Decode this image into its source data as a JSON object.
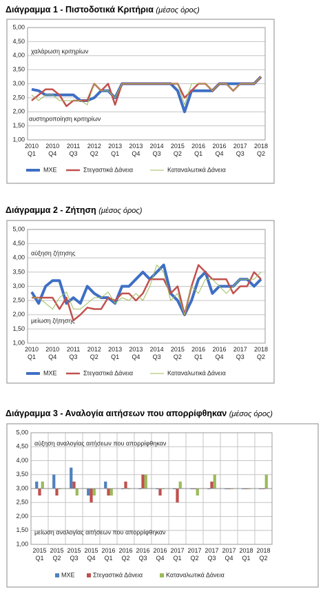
{
  "chart_data": [
    {
      "type": "line",
      "title": "Διάγραμμα 1 - Πιστοδοτικά Κριτήρια",
      "subtitle": "(μέσος όρος)",
      "annotations": [
        "χαλάρωση κριτηρίων",
        "αυστηροποίηση κριτηρίων"
      ],
      "categories": [
        [
          "2010",
          "Q1"
        ],
        null,
        null,
        [
          "2010",
          "Q4"
        ],
        null,
        null,
        [
          "2011",
          "Q3"
        ],
        null,
        null,
        [
          "2012",
          "Q2"
        ],
        null,
        null,
        [
          "2013",
          "Q1"
        ],
        null,
        null,
        [
          "2013",
          "Q4"
        ],
        null,
        null,
        [
          "2014",
          "Q3"
        ],
        null,
        null,
        [
          "2015",
          "Q2"
        ],
        null,
        null,
        [
          "2016",
          "Q1"
        ],
        null,
        null,
        [
          "2016",
          "Q4"
        ],
        null,
        null,
        [
          "2017",
          "Q3"
        ],
        null,
        null,
        [
          "2018",
          "Q2"
        ]
      ],
      "series": [
        {
          "name": "ΜΧΕ",
          "color": "#3e6fc4",
          "values": [
            2.8,
            2.75,
            2.6,
            2.6,
            2.6,
            2.6,
            2.6,
            2.4,
            2.4,
            2.5,
            2.75,
            2.75,
            2.5,
            3,
            3,
            3,
            3,
            3,
            3,
            3,
            3,
            2.75,
            2,
            2.75,
            2.75,
            2.75,
            2.75,
            3,
            3,
            3,
            3,
            3,
            3,
            3.25
          ]
        },
        {
          "name": "Στεγαστικά Δάνεια",
          "color": "#c0504d",
          "values": [
            2.4,
            2.6,
            2.8,
            2.8,
            2.6,
            2.2,
            2.4,
            2.4,
            2.4,
            3,
            2.75,
            3,
            2.25,
            3,
            3,
            3,
            3,
            3,
            3,
            3,
            3,
            3,
            2.5,
            2.75,
            3,
            3,
            2.75,
            3,
            3,
            2.75,
            3,
            3,
            3,
            3.25
          ]
        },
        {
          "name": "Καταναλωτικά Δάνεια",
          "color": "#9bbb59",
          "values": [
            2.6,
            2.4,
            2.6,
            2.6,
            2.4,
            2.4,
            2.4,
            2.4,
            2.25,
            3,
            2.75,
            2.75,
            2.5,
            3,
            3,
            3,
            3,
            3,
            3,
            3,
            3,
            3,
            2.25,
            3,
            3,
            3,
            2.75,
            3,
            3,
            2.75,
            3,
            3,
            3,
            3.25
          ]
        }
      ],
      "ylim": [
        1,
        5
      ],
      "yticks": [
        {
          "value": 1,
          "label": "1,00"
        },
        {
          "value": 1.5,
          "label": "1,50"
        },
        {
          "value": 2,
          "label": "2,00"
        },
        {
          "value": 2.5,
          "label": "2,50"
        },
        {
          "value": 3,
          "label": "3,00"
        },
        {
          "value": 3.5,
          "label": "3,50"
        },
        {
          "value": 4,
          "label": "4,00"
        },
        {
          "value": 4.5,
          "label": "4,50"
        },
        {
          "value": 5,
          "label": "5,00"
        }
      ],
      "grid": true
    },
    {
      "type": "line",
      "title": "Διάγραμμα 2 - Ζήτηση",
      "subtitle": "(μέσος όρος)",
      "annotations": [
        "αύξηση ζήτησης",
        "μείωση ζήτησης"
      ],
      "categories": [
        [
          "2010",
          "Q1"
        ],
        null,
        null,
        [
          "2010",
          "Q4"
        ],
        null,
        null,
        [
          "2011",
          "Q3"
        ],
        null,
        null,
        [
          "2012",
          "Q2"
        ],
        null,
        null,
        [
          "2013",
          "Q1"
        ],
        null,
        null,
        [
          "2013",
          "Q4"
        ],
        null,
        null,
        [
          "2014",
          "Q3"
        ],
        null,
        null,
        [
          "2015",
          "Q2"
        ],
        null,
        null,
        [
          "2016",
          "Q1"
        ],
        null,
        null,
        [
          "2016",
          "Q4"
        ],
        null,
        null,
        [
          "2017",
          "Q3"
        ],
        null,
        null,
        [
          "2018",
          "Q2"
        ]
      ],
      "series": [
        {
          "name": "ΜΧΕ",
          "color": "#3e6fc4",
          "values": [
            2.8,
            2.4,
            3,
            3.2,
            3.2,
            2.4,
            2.6,
            2.4,
            3,
            2.75,
            2.6,
            2.6,
            2.4,
            3,
            3,
            3.25,
            3.5,
            3.25,
            3.5,
            3.75,
            2.75,
            2.5,
            2,
            2.5,
            3.25,
            3.5,
            2.75,
            3,
            3,
            3,
            3.25,
            3.25,
            3,
            3.25
          ]
        },
        {
          "name": "Στεγαστικά Δάνεια",
          "color": "#c0504d",
          "values": [
            2.6,
            2.6,
            2.6,
            2.6,
            2.2,
            2.6,
            1.8,
            2,
            2.25,
            2.2,
            2.2,
            2.6,
            2.5,
            2.75,
            2.75,
            2.5,
            2.75,
            3.25,
            3.25,
            3.25,
            2.75,
            3,
            2,
            3,
            3.75,
            3.5,
            3.25,
            3.25,
            3.25,
            2.75,
            3,
            3,
            3.5,
            3.25
          ]
        },
        {
          "name": "Καταναλωτικά Δάνεια",
          "color": "#9bbb59",
          "values": [
            2.6,
            2.6,
            2.4,
            2.2,
            2.6,
            2.8,
            2.2,
            2.2,
            2.4,
            2.6,
            2.6,
            2.8,
            2.4,
            2.6,
            2.5,
            2.75,
            2.5,
            3,
            3.75,
            3.5,
            2.5,
            2.75,
            2,
            3,
            2.75,
            3.25,
            3.25,
            3,
            2.75,
            3,
            3.25,
            3.25,
            3.25,
            3.5
          ]
        }
      ],
      "ylim": [
        1,
        5
      ],
      "yticks": [
        {
          "value": 1,
          "label": "1,00"
        },
        {
          "value": 1.5,
          "label": "1,50"
        },
        {
          "value": 2,
          "label": "2,00"
        },
        {
          "value": 2.5,
          "label": "2,50"
        },
        {
          "value": 3,
          "label": "3,00"
        },
        {
          "value": 3.5,
          "label": "3,50"
        },
        {
          "value": 4,
          "label": "4,00"
        },
        {
          "value": 4.5,
          "label": "4,50"
        },
        {
          "value": 5,
          "label": "5,00"
        }
      ],
      "grid": true
    },
    {
      "type": "bar",
      "title": "Διάγραμμα 3 - Αναλογία αιτήσεων που απορρίφθηκαν",
      "subtitle": "(μέσος όρος)",
      "annotations": [
        "αύξηση αναλογίας αιτήσεων που απορρίφθηκαν",
        "μείωση αναλογίας αιτήσεων που απορρίφθηκαν"
      ],
      "categories": [
        [
          "2015",
          "Q1"
        ],
        [
          "2015",
          "Q2"
        ],
        [
          "2015",
          "Q3"
        ],
        [
          "2015",
          "Q4"
        ],
        [
          "2016",
          "Q1"
        ],
        [
          "2016",
          "Q2"
        ],
        [
          "2016",
          "Q3"
        ],
        [
          "2016",
          "Q4"
        ],
        [
          "2017",
          "Q1"
        ],
        [
          "2017",
          "Q2"
        ],
        [
          "2017",
          "Q3"
        ],
        [
          "2017",
          "Q4"
        ],
        [
          "2018",
          "Q1"
        ],
        [
          "2018",
          "Q2"
        ]
      ],
      "series": [
        {
          "name": "ΜΧΕ",
          "color": "#4f81bd",
          "values": [
            3.25,
            3.5,
            3.75,
            2.75,
            3.25,
            3,
            3,
            3,
            3,
            3,
            3,
            3,
            3,
            3
          ]
        },
        {
          "name": "Στεγαστικά Δάνεια",
          "color": "#c0504d",
          "values": [
            2.75,
            2.75,
            3.25,
            2.5,
            2.75,
            3.25,
            3.5,
            2.75,
            2.5,
            3,
            3.25,
            3,
            3,
            3
          ]
        },
        {
          "name": "Καταναλωτικά Δάνεια",
          "color": "#9bbb59",
          "values": [
            3.25,
            3,
            2.75,
            2.75,
            2.75,
            3,
            3.5,
            3,
            3.25,
            2.75,
            3.5,
            3,
            3,
            3.5
          ]
        }
      ],
      "ylim": [
        1,
        5
      ],
      "yticks": [
        {
          "value": 1,
          "label": "1,00"
        },
        {
          "value": 1.5,
          "label": "1,50"
        },
        {
          "value": 2,
          "label": "2,00"
        },
        {
          "value": 2.5,
          "label": "2,50"
        },
        {
          "value": 3,
          "label": "3,00"
        },
        {
          "value": 3.5,
          "label": "3,50"
        },
        {
          "value": 4,
          "label": "4,00"
        },
        {
          "value": 4.5,
          "label": "4,50"
        },
        {
          "value": 5,
          "label": "5,00"
        }
      ],
      "grid": true
    }
  ]
}
